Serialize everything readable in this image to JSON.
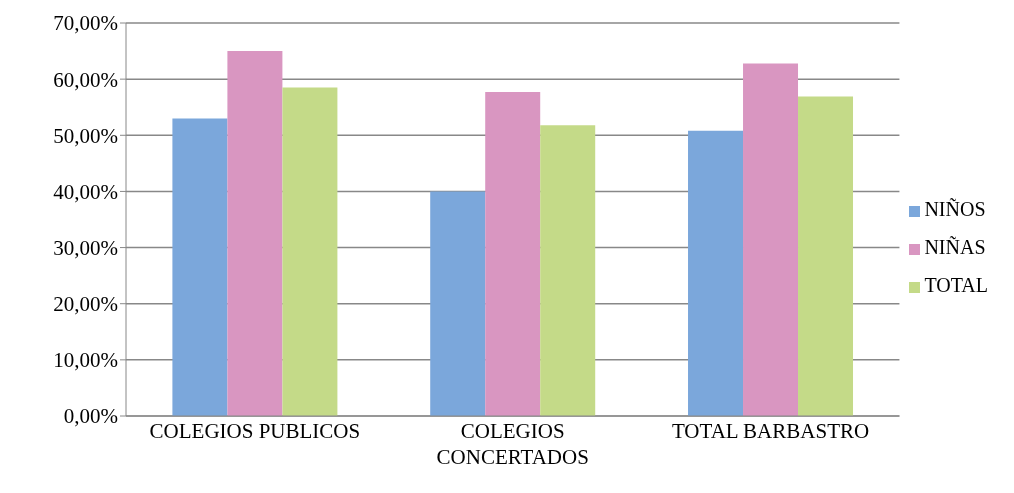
{
  "chart_data": {
    "type": "bar",
    "categories": [
      "COLEGIOS PUBLICOS",
      "COLEGIOS CONCERTADOS",
      "TOTAL BARBASTRO"
    ],
    "series": [
      {
        "name": "NIÑOS",
        "color": "#7ba7db",
        "values": [
          53.0,
          40.0,
          50.8
        ]
      },
      {
        "name": "NIÑAS",
        "color": "#d996c1",
        "values": [
          65.0,
          57.7,
          62.8
        ]
      },
      {
        "name": "TOTAL",
        "color": "#c4da88",
        "values": [
          58.5,
          51.8,
          56.9
        ]
      }
    ],
    "ylim": [
      0,
      70
    ],
    "yticks": [
      {
        "value": 0,
        "label": "0,00%"
      },
      {
        "value": 10,
        "label": "10,00%"
      },
      {
        "value": 20,
        "label": "20,00%"
      },
      {
        "value": 30,
        "label": "30,00%"
      },
      {
        "value": 40,
        "label": "40,00%"
      },
      {
        "value": 50,
        "label": "50,00%"
      },
      {
        "value": 60,
        "label": "60,00%"
      },
      {
        "value": 70,
        "label": "70,00%"
      }
    ],
    "grid": "y",
    "legend": "right"
  }
}
